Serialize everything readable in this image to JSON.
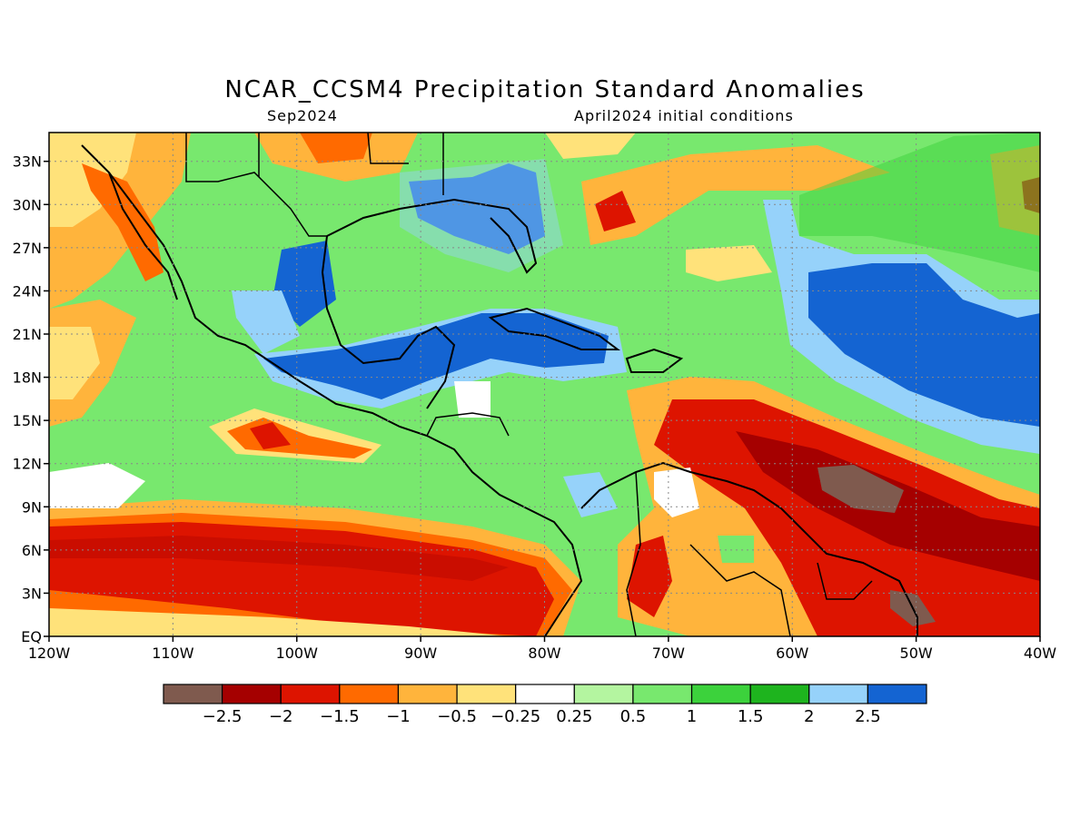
{
  "title": "NCAR_CCSM4 Precipitation Standard Anomalies",
  "subtitle_left": "Sep2024",
  "subtitle_right": "April2024 initial conditions",
  "axes": {
    "lon_range": [
      -120,
      -40
    ],
    "lat_range": [
      0,
      35
    ],
    "lat_ticks": [
      {
        "value": 33,
        "label": "33N"
      },
      {
        "value": 30,
        "label": "30N"
      },
      {
        "value": 27,
        "label": "27N"
      },
      {
        "value": 24,
        "label": "24N"
      },
      {
        "value": 21,
        "label": "21N"
      },
      {
        "value": 18,
        "label": "18N"
      },
      {
        "value": 15,
        "label": "15N"
      },
      {
        "value": 12,
        "label": "12N"
      },
      {
        "value": 9,
        "label": "9N"
      },
      {
        "value": 6,
        "label": "6N"
      },
      {
        "value": 3,
        "label": "3N"
      },
      {
        "value": 0,
        "label": "EQ"
      }
    ],
    "lon_ticks": [
      {
        "value": -120,
        "label": "120W"
      },
      {
        "value": -110,
        "label": "110W"
      },
      {
        "value": -100,
        "label": "100W"
      },
      {
        "value": -90,
        "label": "90W"
      },
      {
        "value": -80,
        "label": "80W"
      },
      {
        "value": -70,
        "label": "70W"
      },
      {
        "value": -60,
        "label": "60W"
      },
      {
        "value": -50,
        "label": "50W"
      },
      {
        "value": -40,
        "label": "40W"
      }
    ],
    "grid": "dotted"
  },
  "legend": {
    "colors": [
      "#7f5a4e",
      "#a50000",
      "#dd1400",
      "#ff6a00",
      "#ffb43c",
      "#ffe27a",
      "#ffffff",
      "#b4f5a0",
      "#78e86e",
      "#3cd23c",
      "#1eb41e",
      "#96d2fa",
      "#1464d2"
    ],
    "labels": [
      "−2.5",
      "−2",
      "−1.5",
      "−1",
      "−0.5",
      "−0.25",
      "0.25",
      "0.5",
      "1",
      "1.5",
      "2",
      "2.5"
    ]
  },
  "map_colors": {
    "land_line": "#000000",
    "neutral": "#ffffff",
    "light_dry": "#ffe27a",
    "dry": "#ffb43c",
    "moderate_dry": "#ff6a00",
    "strong_dry": "#dd1400",
    "very_dry": "#a50000",
    "extreme_dry": "#7f5a4e",
    "light_wet": "#b4f5a0",
    "wet": "#78e86e",
    "moderate_wet": "#3cd23c",
    "strong_wet": "#1eb41e",
    "very_wet": "#96d2fa",
    "extreme_wet": "#1464d2"
  }
}
